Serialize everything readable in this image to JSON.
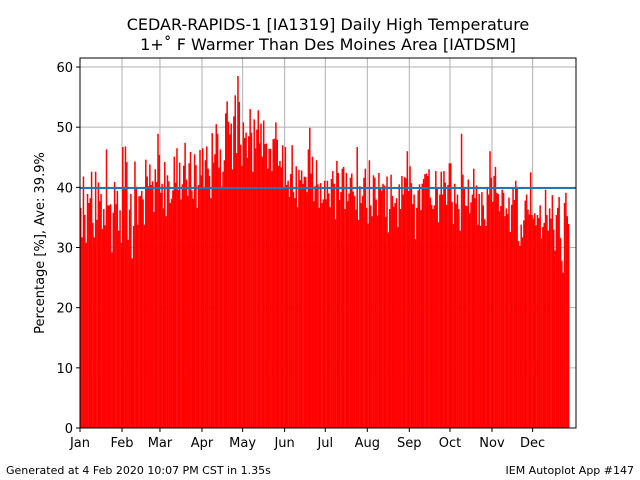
{
  "chart_data": {
    "type": "bar",
    "title": "CEDAR-RAPIDS-1 [IA1319] Daily High Temperature",
    "subtitle": "1+˚ F Warmer Than Des Moines Area [IATDSM]",
    "ylabel": "Percentage [%], Ave: 39.9%",
    "xlabel": "",
    "ylim": [
      0,
      61.5
    ],
    "xlim_days": [
      1,
      367
    ],
    "yticks": [
      0,
      10,
      20,
      30,
      40,
      50,
      60
    ],
    "month_ticks": [
      {
        "label": "Jan",
        "day": 1
      },
      {
        "label": "Feb",
        "day": 32
      },
      {
        "label": "Mar",
        "day": 60
      },
      {
        "label": "Apr",
        "day": 91
      },
      {
        "label": "May",
        "day": 121
      },
      {
        "label": "Jun",
        "day": 152
      },
      {
        "label": "Jul",
        "day": 182
      },
      {
        "label": "Aug",
        "day": 213
      },
      {
        "label": "Sep",
        "day": 244
      },
      {
        "label": "Oct",
        "day": 274
      },
      {
        "label": "Nov",
        "day": 305
      },
      {
        "label": "Dec",
        "day": 335
      }
    ],
    "grid": true,
    "average": 39.9,
    "bar_color": "#ff0000",
    "avg_line_color": "#1f77b4",
    "values": [
      36.6,
      31.7,
      41.8,
      35.4,
      30.8,
      38.9,
      37.4,
      38.2,
      42.6,
      34.1,
      31.7,
      42.6,
      34.6,
      40.8,
      37.7,
      38.9,
      33.1,
      36.4,
      33.7,
      46.3,
      37.0,
      37.0,
      37.2,
      29.2,
      35.8,
      40.9,
      37.2,
      39.4,
      32.8,
      36.2,
      30.8,
      46.7,
      39.7,
      46.8,
      44.2,
      31.3,
      36.3,
      38.9,
      28.2,
      33.6,
      44.3,
      40.1,
      33.8,
      38.5,
      38.6,
      39.4,
      38.0,
      33.8,
      44.6,
      41.8,
      40.2,
      43.8,
      40.4,
      41.0,
      35.9,
      43.0,
      40.9,
      48.9,
      45.4,
      39.1,
      40.6,
      36.5,
      44.2,
      35.2,
      42.0,
      41.0,
      37.4,
      38.1,
      39.5,
      45.1,
      40.8,
      46.5,
      39.6,
      44.1,
      38.0,
      40.5,
      43.6,
      47.4,
      41.3,
      38.6,
      44.0,
      45.9,
      39.5,
      38.1,
      45.5,
      43.7,
      36.6,
      40.4,
      46.2,
      42.0,
      46.5,
      39.8,
      44.5,
      46.8,
      43.1,
      41.9,
      38.2,
      49.0,
      44.1,
      45.5,
      50.5,
      48.9,
      43.3,
      46.3,
      40.1,
      42.6,
      44.5,
      52.3,
      54.3,
      50.9,
      48.8,
      50.6,
      43.0,
      51.8,
      55.3,
      45.7,
      58.5,
      54.2,
      47.1,
      43.6,
      50.8,
      48.2,
      49.1,
      44.9,
      48.5,
      53.0,
      49.1,
      42.6,
      51.3,
      46.5,
      49.6,
      52.8,
      47.3,
      50.6,
      45.1,
      51.1,
      47.2,
      47.3,
      43.1,
      46.4,
      46.4,
      42.7,
      48.0,
      48.1,
      50.8,
      47.9,
      43.6,
      44.4,
      43.3,
      47.0,
      40.0,
      46.7,
      40.4,
      41.1,
      38.4,
      42.2,
      47.0,
      39.2,
      38.2,
      43.5,
      36.7,
      42.9,
      41.2,
      42.8,
      40.6,
      41.8,
      41.7,
      39.2,
      46.3,
      49.9,
      42.3,
      45.1,
      37.7,
      40.2,
      44.5,
      40.5,
      36.6,
      40.7,
      37.4,
      38.0,
      41.1,
      38.0,
      41.1,
      39.0,
      36.7,
      41.4,
      42.7,
      40.6,
      34.7,
      44.4,
      42.4,
      37.9,
      39.2,
      43.1,
      43.4,
      36.4,
      42.4,
      37.7,
      39.0,
      41.6,
      42.3,
      39.3,
      38.6,
      36.3,
      46.7,
      34.6,
      40.2,
      37.4,
      38.6,
      41.6,
      43.1,
      36.6,
      34.0,
      44.5,
      37.0,
      35.2,
      42.0,
      41.6,
      38.0,
      35.3,
      42.4,
      39.9,
      39.4,
      40.6,
      40.3,
      35.1,
      41.8,
      32.5,
      36.4,
      42.1,
      38.6,
      36.8,
      37.4,
      38.2,
      33.4,
      40.5,
      36.4,
      41.9,
      38.8,
      41.7,
      41.5,
      46.0,
      39.4,
      43.5,
      40.7,
      37.2,
      38.8,
      31.4,
      36.6,
      39.5,
      40.5,
      36.2,
      40.6,
      41.4,
      42.2,
      42.3,
      41.9,
      43.0,
      38.3,
      37.1,
      36.4,
      37.0,
      42.7,
      39.9,
      34.2,
      38.8,
      42.6,
      38.8,
      42.7,
      40.8,
      37.1,
      40.4,
      44.0,
      44.0,
      37.6,
      33.9,
      40.6,
      37.3,
      38.8,
      36.4,
      32.8,
      48.9,
      42.1,
      39.8,
      37.0,
      36.9,
      41.3,
      35.7,
      37.5,
      38.8,
      43.1,
      38.2,
      40.3,
      33.8,
      38.9,
      33.6,
      39.2,
      37.0,
      34.7,
      33.6,
      40.0,
      38.8,
      46.0,
      41.6,
      37.6,
      41.9,
      43.4,
      39.1,
      38.9,
      36.0,
      36.9,
      39.6,
      39.1,
      35.2,
      36.5,
      35.6,
      38.3,
      32.6,
      37.1,
      39.9,
      37.9,
      41.1,
      39.9,
      31.1,
      30.3,
      33.8,
      31.7,
      34.5,
      37.8,
      38.8,
      36.3,
      35.5,
      42.5,
      35.4,
      34.8,
      35.7,
      33.7,
      35.4,
      34.9,
      37.0,
      31.5,
      33.4,
      34.1,
      39.6,
      35.4,
      32.8,
      36.5,
      34.8,
      38.7,
      33.0,
      29.5,
      35.4,
      36.6,
      38.4,
      31.6,
      27.8,
      25.8,
      37.4,
      39.1,
      35.2,
      33.9
    ]
  },
  "footer": {
    "generated": "Generated at 4 Feb 2020 10:07 PM CST in 1.35s",
    "app": "IEM Autoplot App #147"
  }
}
